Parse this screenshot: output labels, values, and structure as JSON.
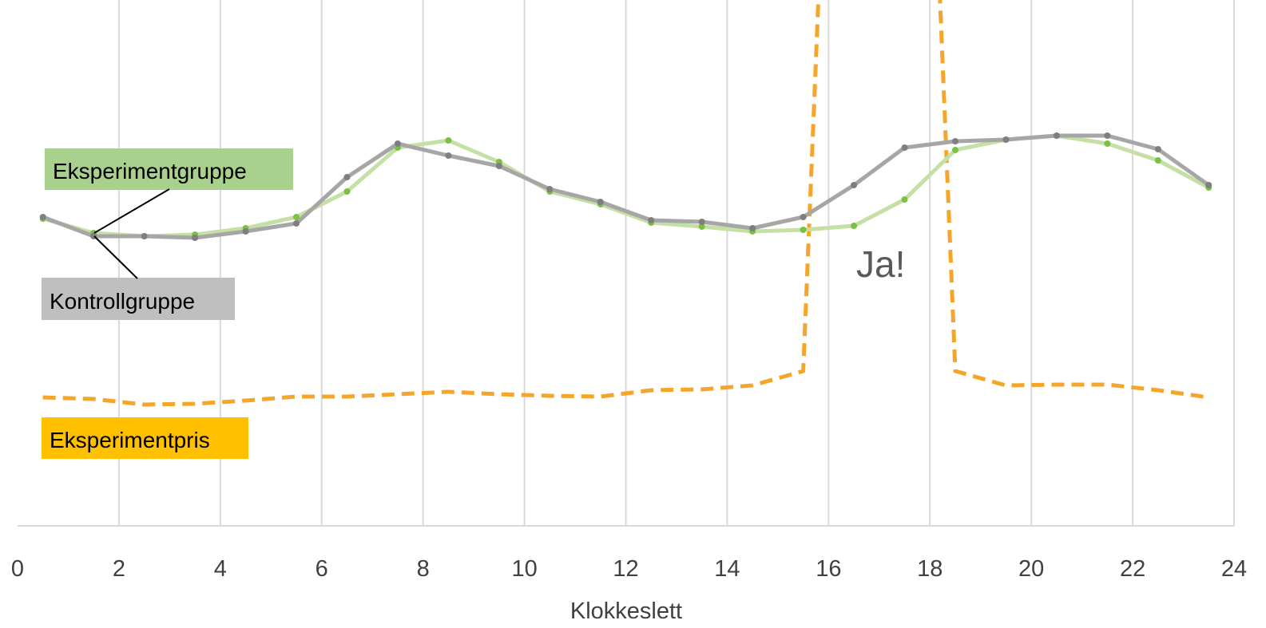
{
  "chart_data": {
    "type": "line",
    "xlabel": "Klokkeslett",
    "xlim": [
      0,
      24
    ],
    "x_ticks": [
      "0",
      "2",
      "4",
      "6",
      "8",
      "10",
      "12",
      "14",
      "16",
      "18",
      "20",
      "22",
      "24"
    ],
    "grid": "vertical",
    "annotation": "Ja!",
    "series": [
      {
        "name": "Kontrollgruppe",
        "color": "#a6a6a6",
        "marker_color": "#7f7f7f",
        "x": [
          0.5,
          1.5,
          2.5,
          3.5,
          4.5,
          5.5,
          6.5,
          7.5,
          8.5,
          9.5,
          10.5,
          11.5,
          12.5,
          13.5,
          14.5,
          15.5,
          16.5,
          17.5,
          18.5,
          19.5,
          20.5,
          21.5,
          22.5,
          23.5
        ],
        "values": [
          272,
          296,
          296,
          298,
          290,
          280,
          222,
          180,
          195,
          208,
          237,
          253,
          276,
          278,
          286,
          272,
          232,
          185,
          177,
          175,
          170,
          170,
          187,
          232
        ]
      },
      {
        "name": "Eksperimentgruppe",
        "color": "#c5e0a5",
        "marker_color": "#7ac143",
        "x": [
          0.5,
          1.5,
          2.5,
          3.5,
          4.5,
          5.5,
          6.5,
          7.5,
          8.5,
          9.5,
          10.5,
          11.5,
          12.5,
          13.5,
          14.5,
          15.5,
          16.5,
          17.5,
          18.5,
          19.5,
          20.5,
          21.5,
          22.5,
          23.5
        ],
        "values": [
          274,
          292,
          296,
          294,
          286,
          272,
          240,
          185,
          176,
          203,
          240,
          256,
          279,
          284,
          290,
          288,
          283,
          250,
          188,
          175,
          170,
          180,
          201,
          235
        ]
      },
      {
        "name": "Eksperimentpris",
        "color": "#f5a52a",
        "dashed": true,
        "x": [
          0.5,
          1.5,
          2.5,
          3.5,
          4.5,
          5.5,
          6.5,
          7.5,
          8.5,
          9.5,
          10.5,
          11.5,
          12.5,
          13.5,
          14.5,
          15.5,
          15.8,
          16.1,
          17.9,
          18.2,
          18.5,
          19.5,
          20.5,
          21.5,
          22.5,
          23.5
        ],
        "values": [
          498,
          500,
          507,
          506,
          502,
          497,
          497,
          494,
          491,
          494,
          496,
          497,
          489,
          488,
          483,
          465,
          0,
          -60,
          -60,
          0,
          465,
          483,
          482,
          482,
          489,
          498
        ]
      }
    ],
    "legend_labels": [
      "Eksperimentgruppe",
      "Kontrollgruppe",
      "Eksperimentpris"
    ],
    "legend_colors": [
      "#a9d18e",
      "#bfbfbf",
      "#ffc000"
    ]
  }
}
